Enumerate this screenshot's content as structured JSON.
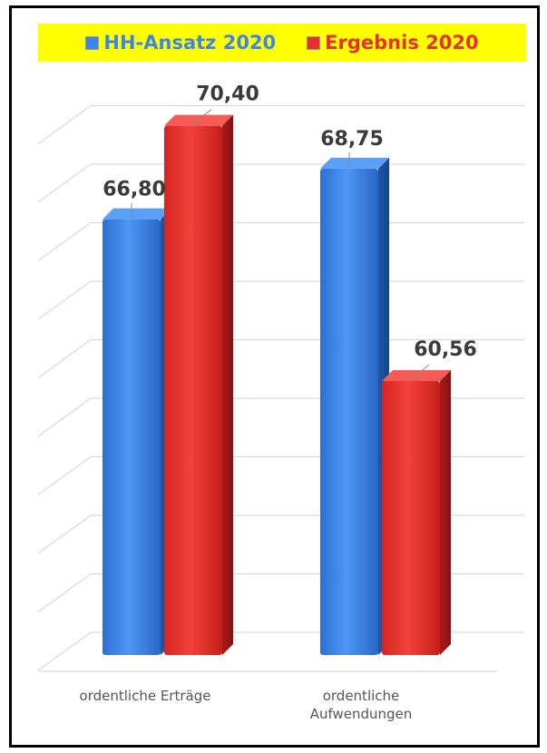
{
  "chart_data": {
    "type": "bar",
    "categories": [
      "ordentliche Erträge",
      "ordentliche\nAufwendungen"
    ],
    "series": [
      {
        "name": "HH-Ansatz 2020",
        "values": [
          66.8,
          68.75
        ],
        "labels": [
          "66,80",
          "68,75"
        ]
      },
      {
        "name": "Ergebnis 2020",
        "values": [
          70.4,
          60.56
        ],
        "labels": [
          "70,40",
          "60,56"
        ]
      }
    ],
    "ylim": [
      50,
      73.5
    ],
    "grid": true,
    "legend": "top",
    "colors": {
      "HH-Ansatz 2020": "#3f85e6",
      "Ergebnis 2020": "#e8302c",
      "legend_bg": "#ffff00"
    }
  }
}
